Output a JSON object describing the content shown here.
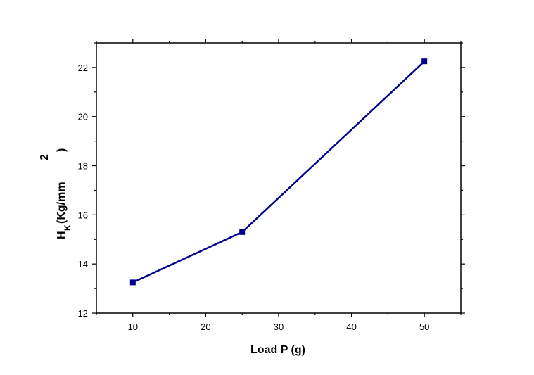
{
  "chart_data": {
    "type": "line",
    "title": "",
    "xlabel": "Load P (g)",
    "ylabel": {
      "main": "H",
      "subscript": "K",
      "unit": "(Kg/mm",
      "superscript": "2",
      "close": ")"
    },
    "xlim": [
      5,
      55
    ],
    "ylim": [
      12,
      23
    ],
    "xticks": [
      10,
      20,
      30,
      40,
      50
    ],
    "yticks": [
      12,
      14,
      16,
      18,
      20,
      22
    ],
    "grid": false,
    "series": [
      {
        "x": [
          10,
          25,
          50
        ],
        "y": [
          13.25,
          15.3,
          22.25
        ],
        "color": "#00008b",
        "marker": "square"
      }
    ]
  }
}
